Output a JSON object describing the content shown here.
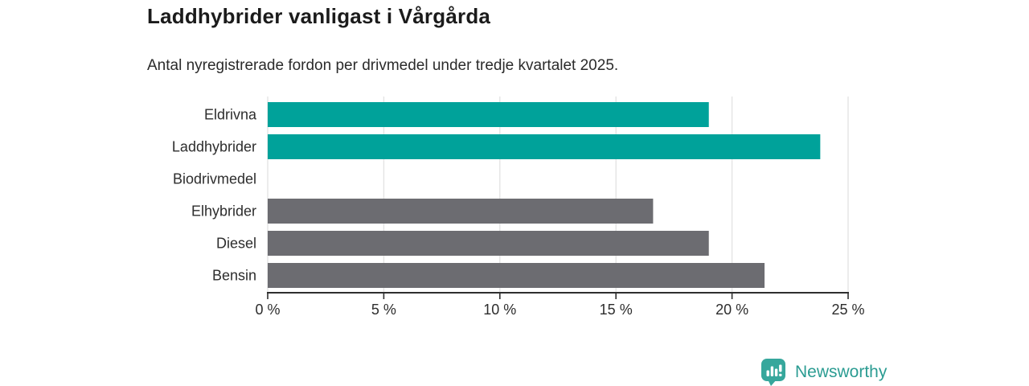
{
  "colors": {
    "highlight_bar": "#00a29a",
    "default_bar": "#6c6c71",
    "gridline": "#e4e4e4",
    "axis_line": "#2f2f2f",
    "tick_text": "#2d2d2d",
    "title_text": "#1b1b1b",
    "brand_teal": "#2b9c92",
    "logo_mark_fill": "#36a79c"
  },
  "chart_data": {
    "type": "bar",
    "orientation": "horizontal",
    "title": "Laddhybrider vanligast i Vårgårda",
    "subtitle": "Antal nyregistrerade fordon per drivmedel under tredje kvartalet 2025.",
    "categories": [
      "Eldrivna",
      "Laddhybrider",
      "Biodrivmedel",
      "Elhybrider",
      "Diesel",
      "Bensin"
    ],
    "values": [
      19.0,
      23.8,
      0,
      16.6,
      19.0,
      21.4
    ],
    "unit": "%",
    "xlim": [
      0,
      25
    ],
    "x_ticks": [
      0,
      5,
      10,
      15,
      20,
      25
    ],
    "x_tick_labels": [
      "0 %",
      "5 %",
      "10 %",
      "15 %",
      "20 %",
      "25 %"
    ],
    "grid": "vertical",
    "legend": "none",
    "bar_colors": [
      "#00a29a",
      "#00a29a",
      "#6c6c71",
      "#6c6c71",
      "#6c6c71",
      "#6c6c71"
    ],
    "highlighted_categories": [
      "Eldrivna",
      "Laddhybrider"
    ]
  },
  "footer": {
    "brand_label": "Newsworthy",
    "logo_icon": "speech-bubble-bar-chart"
  }
}
